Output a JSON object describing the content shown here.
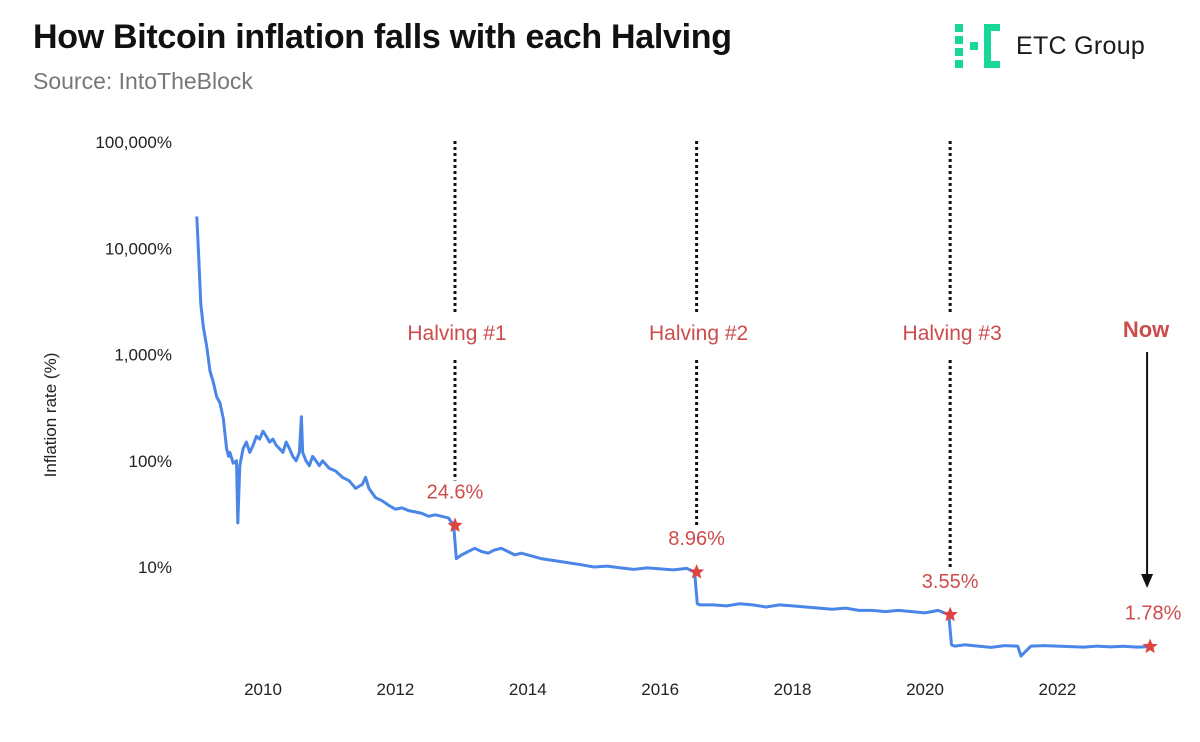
{
  "header": {
    "title": "How Bitcoin inflation falls with each Halving",
    "source": "Source: IntoTheBlock"
  },
  "brand": {
    "name": "ETC Group",
    "logo_icon": "etc-group-logo-icon",
    "logo_color": "#19d69a"
  },
  "colors": {
    "line": "#4a86e8",
    "accent": "#cc4c4c",
    "marker": "#dd4444"
  },
  "chart_data": {
    "type": "line",
    "title": "How Bitcoin inflation falls with each Halving",
    "subtitle": "Source: IntoTheBlock",
    "xlabel": "",
    "ylabel": "Inflation rate (%)",
    "yscale": "log",
    "ylim": [
      1,
      100000
    ],
    "xlim": [
      2008.8,
      2023.8
    ],
    "x_ticks": [
      2010,
      2012,
      2014,
      2016,
      2018,
      2020,
      2022
    ],
    "x_tick_labels": [
      "2010",
      "2012",
      "2014",
      "2016",
      "2018",
      "2020",
      "2022"
    ],
    "y_ticks": [
      10,
      100,
      1000,
      10000,
      100000
    ],
    "y_tick_labels": [
      "10%",
      "100%",
      "1,000%",
      "10,000%",
      "100,000%"
    ],
    "grid": false,
    "legend": "none",
    "series": [
      {
        "x": [
          2009.0,
          2009.03,
          2009.06,
          2009.1,
          2009.15,
          2009.2,
          2009.25,
          2009.3,
          2009.35,
          2009.4,
          2009.45,
          2009.48,
          2009.5,
          2009.55,
          2009.6,
          2009.62,
          2009.65,
          2009.7,
          2009.75,
          2009.8,
          2009.85,
          2009.9,
          2009.95,
          2010.0,
          2010.05,
          2010.1,
          2010.15,
          2010.2,
          2010.25,
          2010.3,
          2010.35,
          2010.4,
          2010.45,
          2010.5,
          2010.55,
          2010.58,
          2010.6,
          2010.65,
          2010.7,
          2010.75,
          2010.8,
          2010.85,
          2010.9,
          2011.0,
          2011.1,
          2011.2,
          2011.3,
          2011.4,
          2011.5,
          2011.55,
          2011.6,
          2011.7,
          2011.8,
          2011.9,
          2012.0,
          2012.1,
          2012.2,
          2012.3,
          2012.4,
          2012.5,
          2012.6,
          2012.7,
          2012.8,
          2012.88,
          2012.92,
          2013.0,
          2013.1,
          2013.2,
          2013.3,
          2013.4,
          2013.5,
          2013.6,
          2013.7,
          2013.8,
          2013.9,
          2014.0,
          2014.2,
          2014.4,
          2014.6,
          2014.8,
          2015.0,
          2015.2,
          2015.4,
          2015.6,
          2015.8,
          2016.0,
          2016.2,
          2016.4,
          2016.52,
          2016.56,
          2016.6,
          2016.8,
          2017.0,
          2017.2,
          2017.4,
          2017.6,
          2017.8,
          2018.0,
          2018.2,
          2018.4,
          2018.6,
          2018.8,
          2019.0,
          2019.2,
          2019.4,
          2019.6,
          2019.8,
          2020.0,
          2020.2,
          2020.36,
          2020.4,
          2020.45,
          2020.6,
          2020.8,
          2021.0,
          2021.2,
          2021.4,
          2021.45,
          2021.6,
          2021.8,
          2022.0,
          2022.2,
          2022.4,
          2022.6,
          2022.8,
          2023.0,
          2023.2,
          2023.4
        ],
        "y": [
          20000,
          8000,
          3000,
          1800,
          1200,
          700,
          550,
          400,
          350,
          250,
          130,
          110,
          120,
          95,
          100,
          26,
          90,
          130,
          150,
          120,
          140,
          170,
          160,
          190,
          170,
          150,
          160,
          140,
          130,
          120,
          150,
          130,
          110,
          100,
          120,
          260,
          120,
          100,
          90,
          110,
          100,
          90,
          100,
          85,
          80,
          70,
          65,
          55,
          60,
          70,
          55,
          45,
          42,
          38,
          35,
          36,
          34,
          33,
          32,
          30,
          31,
          30,
          29,
          24.6,
          12,
          13,
          14,
          15,
          14,
          13.5,
          14.5,
          15,
          14,
          13,
          13.5,
          13,
          12,
          11.5,
          11,
          10.5,
          10,
          10.2,
          9.8,
          9.5,
          9.8,
          9.6,
          9.4,
          9.7,
          8.96,
          4.5,
          4.4,
          4.4,
          4.3,
          4.5,
          4.4,
          4.2,
          4.4,
          4.3,
          4.2,
          4.1,
          4.0,
          4.1,
          3.9,
          3.9,
          3.8,
          3.9,
          3.8,
          3.7,
          3.9,
          3.55,
          1.85,
          1.8,
          1.85,
          1.8,
          1.75,
          1.82,
          1.8,
          1.45,
          1.8,
          1.82,
          1.8,
          1.78,
          1.76,
          1.8,
          1.77,
          1.79,
          1.76,
          1.78
        ]
      }
    ],
    "halvings": [
      {
        "label": "Halving #1",
        "x": 2012.9,
        "value": 24.6,
        "value_label": "24.6%"
      },
      {
        "label": "Halving #2",
        "x": 2016.55,
        "value": 8.96,
        "value_label": "8.96%"
      },
      {
        "label": "Halving #3",
        "x": 2020.38,
        "value": 3.55,
        "value_label": "3.55%"
      }
    ],
    "now": {
      "label": "Now",
      "x": 2023.4,
      "value": 1.78,
      "value_label": "1.78%"
    }
  }
}
